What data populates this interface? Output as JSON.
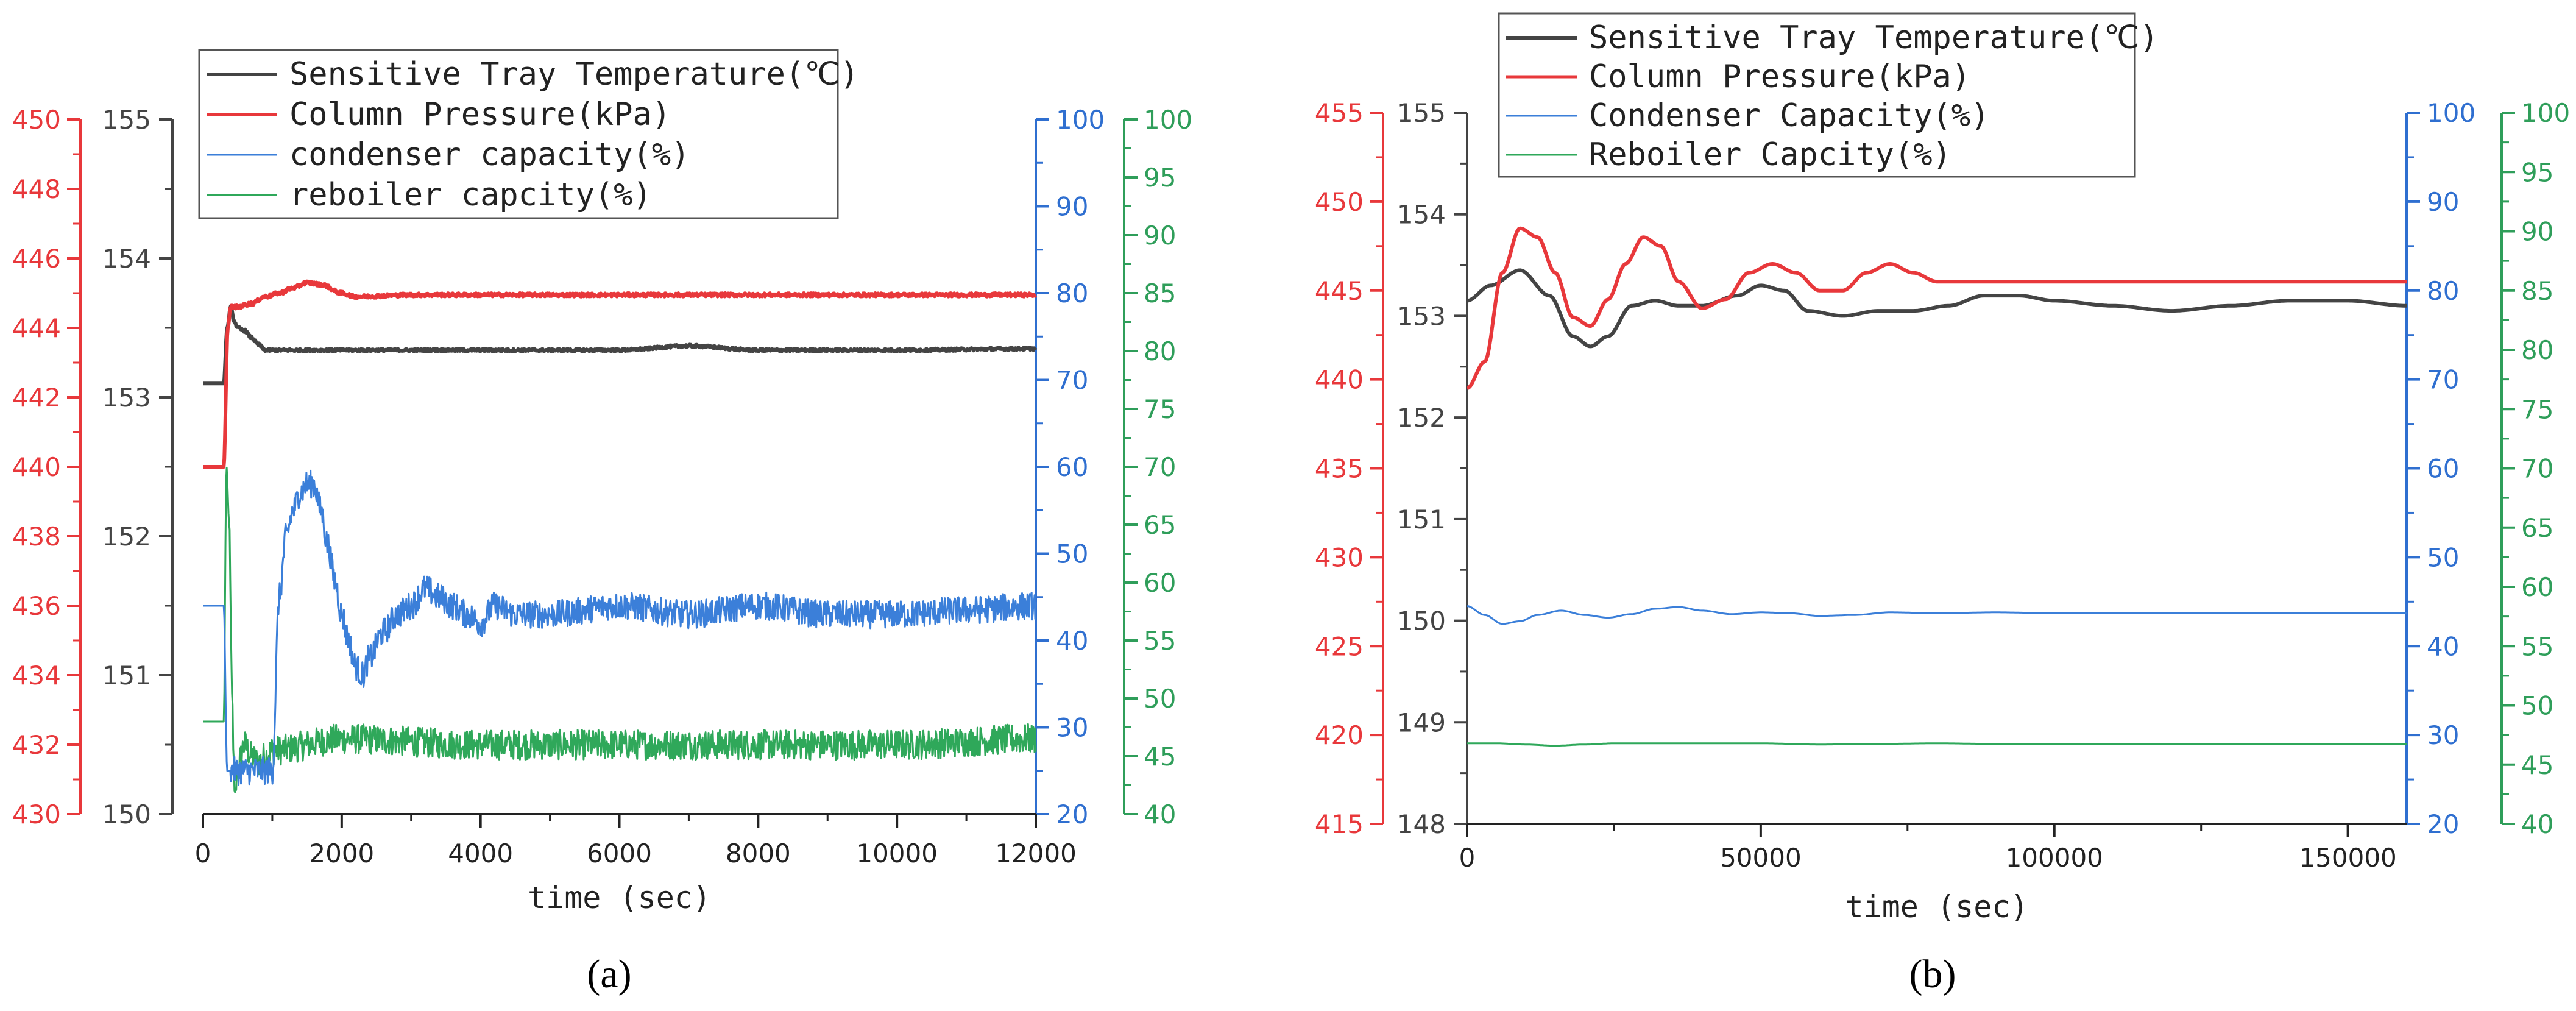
{
  "colors": {
    "temperature": "#444444",
    "pressure": "#e8383b",
    "condenser": "#3b7fd9",
    "reboiler": "#2fa85a",
    "condenser_axis": "#2f6fd0",
    "reboiler_axis": "#2f9e5a"
  },
  "chart_data": [
    {
      "type": "line",
      "panel_label": "(a)",
      "xlabel": "time (sec)",
      "xlim": [
        0,
        12000
      ],
      "xticks": [
        "0",
        "2000",
        "4000",
        "6000",
        "8000",
        "10000",
        "12000"
      ],
      "grid": false,
      "legend_position": "top",
      "legend": [
        "Sensitive Tray Temperature(℃)",
        "Column Pressure(kPa)",
        "condenser capacity(%)",
        "reboiler capcity(%)"
      ],
      "axes": {
        "pressure": {
          "side": "left-outer",
          "ylim": [
            430,
            450
          ],
          "ticks": [
            "430",
            "432",
            "434",
            "436",
            "438",
            "440",
            "442",
            "444",
            "446",
            "448",
            "450"
          ]
        },
        "temperature": {
          "side": "left-inner",
          "ylim": [
            150,
            155
          ],
          "ticks": [
            "150",
            "151",
            "152",
            "153",
            "154",
            "155"
          ]
        },
        "condenser": {
          "side": "right-inner",
          "ylim": [
            20,
            100
          ],
          "ticks": [
            "20",
            "30",
            "40",
            "50",
            "60",
            "70",
            "80",
            "90",
            "100"
          ]
        },
        "reboiler": {
          "side": "right-outer",
          "ylim": [
            40,
            100
          ],
          "ticks": [
            "40",
            "45",
            "50",
            "55",
            "60",
            "65",
            "70",
            "75",
            "80",
            "85",
            "90",
            "95",
            "100"
          ]
        }
      },
      "series": [
        {
          "name": "Sensitive Tray Temperature(℃)",
          "axis": "temperature",
          "x": [
            0,
            80,
            300,
            350,
            400,
            450,
            500,
            600,
            700,
            800,
            900,
            1000,
            2000,
            4000,
            6000,
            7000,
            8000,
            10000,
            12000
          ],
          "y": [
            153.1,
            153.1,
            153.1,
            153.5,
            153.65,
            153.55,
            153.5,
            153.48,
            153.43,
            153.38,
            153.34,
            153.34,
            153.34,
            153.34,
            153.34,
            153.37,
            153.34,
            153.34,
            153.35
          ],
          "noise": 0.01
        },
        {
          "name": "Column Pressure(kPa)",
          "axis": "pressure",
          "x": [
            0,
            80,
            300,
            360,
            400,
            500,
            700,
            900,
            1100,
            1300,
            1500,
            1700,
            2000,
            2200,
            3000,
            4000,
            6000,
            8000,
            10000,
            12000
          ],
          "y": [
            440,
            440,
            440,
            444.0,
            444.6,
            444.6,
            444.7,
            444.9,
            445.0,
            445.15,
            445.3,
            445.25,
            445.0,
            444.9,
            444.95,
            444.95,
            444.95,
            444.95,
            444.95,
            444.95
          ],
          "noise": 0.05
        },
        {
          "name": "condenser capacity(%)",
          "axis": "condenser",
          "x": [
            0,
            80,
            300,
            350,
            400,
            600,
            800,
            1000,
            1100,
            1200,
            1300,
            1400,
            1500,
            1600,
            1700,
            1800,
            1900,
            2000,
            2100,
            2200,
            2300,
            2400,
            2600,
            2800,
            3000,
            3200,
            3400,
            3600,
            3800,
            4000,
            4200,
            4500,
            5000,
            6000,
            7000,
            8000,
            9000,
            10000,
            11000,
            12000
          ],
          "y": [
            44,
            44,
            44,
            25,
            25,
            25,
            25,
            25,
            45,
            52,
            55,
            57,
            58,
            58,
            55,
            51,
            47,
            43,
            40,
            37,
            36,
            38,
            41,
            43,
            44,
            46,
            45,
            44,
            43,
            42,
            44,
            43,
            43,
            44,
            43,
            44,
            43,
            43,
            43.5,
            44
          ],
          "noise": 1.6
        },
        {
          "name": "reboiler capcity(%)",
          "axis": "reboiler",
          "x": [
            0,
            80,
            300,
            340,
            380,
            420,
            460,
            500,
            600,
            700,
            800,
            900,
            1000,
            2000,
            4000,
            6000,
            8000,
            10000,
            12000
          ],
          "y": [
            48,
            48,
            48,
            70,
            65,
            50,
            41,
            44,
            46,
            45,
            44.5,
            45,
            45.5,
            46.5,
            46,
            46,
            46,
            46,
            46.5
          ],
          "noise": 1.3
        }
      ]
    },
    {
      "type": "line",
      "panel_label": "(b)",
      "xlabel": "time (sec)",
      "xlim": [
        0,
        160000
      ],
      "xticks": [
        "0",
        "50000",
        "100000",
        "150000"
      ],
      "grid": false,
      "legend_position": "top",
      "legend": [
        "Sensitive Tray Temperature(℃)",
        "Column Pressure(kPa)",
        "Condenser Capacity(%)",
        "Reboiler Capcity(%)"
      ],
      "axes": {
        "pressure": {
          "side": "left-outer",
          "ylim": [
            415,
            455
          ],
          "ticks": [
            "415",
            "420",
            "425",
            "430",
            "435",
            "440",
            "445",
            "450",
            "455"
          ]
        },
        "temperature": {
          "side": "left-inner",
          "ylim": [
            148,
            155
          ],
          "ticks": [
            "148",
            "149",
            "150",
            "151",
            "152",
            "153",
            "154",
            "155"
          ]
        },
        "condenser": {
          "side": "right-inner",
          "ylim": [
            20,
            100
          ],
          "ticks": [
            "20",
            "30",
            "40",
            "50",
            "60",
            "70",
            "80",
            "90",
            "100"
          ]
        },
        "reboiler": {
          "side": "right-outer",
          "ylim": [
            40,
            100
          ],
          "ticks": [
            "40",
            "45",
            "50",
            "55",
            "60",
            "65",
            "70",
            "75",
            "80",
            "85",
            "90",
            "95",
            "100"
          ]
        }
      },
      "series": [
        {
          "name": "Sensitive Tray Temperature(℃)",
          "axis": "temperature",
          "x": [
            0,
            4000,
            9000,
            14000,
            18000,
            21000,
            24000,
            28000,
            32000,
            36000,
            40000,
            46000,
            50000,
            54000,
            58000,
            64000,
            70000,
            76000,
            82000,
            88000,
            94000,
            100000,
            110000,
            120000,
            130000,
            140000,
            150000,
            160000
          ],
          "y": [
            153.15,
            153.3,
            153.45,
            153.2,
            152.8,
            152.7,
            152.8,
            153.1,
            153.15,
            153.1,
            153.1,
            153.2,
            153.3,
            153.25,
            153.05,
            153.0,
            153.05,
            153.05,
            153.1,
            153.2,
            153.2,
            153.15,
            153.1,
            153.05,
            153.1,
            153.15,
            153.15,
            153.1
          ],
          "noise": 0
        },
        {
          "name": "Column Pressure(kPa)",
          "axis": "pressure",
          "x": [
            0,
            3000,
            6000,
            9000,
            12000,
            15000,
            18000,
            21000,
            24000,
            27000,
            30000,
            33000,
            36000,
            40000,
            44000,
            48000,
            52000,
            56000,
            60000,
            64000,
            68000,
            72000,
            76000,
            80000,
            85000,
            90000,
            95000,
            100000,
            105000,
            110000,
            120000,
            130000,
            140000,
            150000,
            160000
          ],
          "y": [
            439.5,
            441,
            446,
            448.5,
            448,
            446,
            443.5,
            443,
            444.5,
            446.5,
            448,
            447.5,
            445.5,
            444,
            444.5,
            446,
            446.5,
            446,
            445,
            445,
            446,
            446.5,
            446,
            445.5,
            445.5,
            445.5,
            445.5,
            445.5,
            445.5,
            445.5,
            445.5,
            445.5,
            445.5,
            445.5,
            445.5
          ],
          "noise": 0
        },
        {
          "name": "Condenser Capacity(%)",
          "axis": "condenser",
          "x": [
            0,
            3000,
            6000,
            9000,
            12000,
            16000,
            20000,
            24000,
            28000,
            32000,
            36000,
            40000,
            45000,
            50000,
            55000,
            60000,
            66000,
            72000,
            80000,
            90000,
            100000,
            110000,
            120000,
            130000,
            140000,
            150000,
            160000
          ],
          "y": [
            44.5,
            43.5,
            42.5,
            42.8,
            43.5,
            44,
            43.5,
            43.2,
            43.6,
            44.2,
            44.4,
            44.0,
            43.6,
            43.8,
            43.7,
            43.4,
            43.5,
            43.8,
            43.7,
            43.8,
            43.7,
            43.7,
            43.7,
            43.7,
            43.7,
            43.7,
            43.7
          ],
          "noise": 0
        },
        {
          "name": "Reboiler Capcity(%)",
          "axis": "reboiler",
          "x": [
            0,
            5000,
            10000,
            15000,
            20000,
            25000,
            30000,
            40000,
            50000,
            60000,
            70000,
            80000,
            90000,
            100000,
            120000,
            140000,
            160000
          ],
          "y": [
            46.8,
            46.8,
            46.7,
            46.6,
            46.7,
            46.8,
            46.8,
            46.8,
            46.8,
            46.7,
            46.75,
            46.8,
            46.75,
            46.75,
            46.75,
            46.75,
            46.75
          ],
          "noise": 0
        }
      ]
    }
  ]
}
